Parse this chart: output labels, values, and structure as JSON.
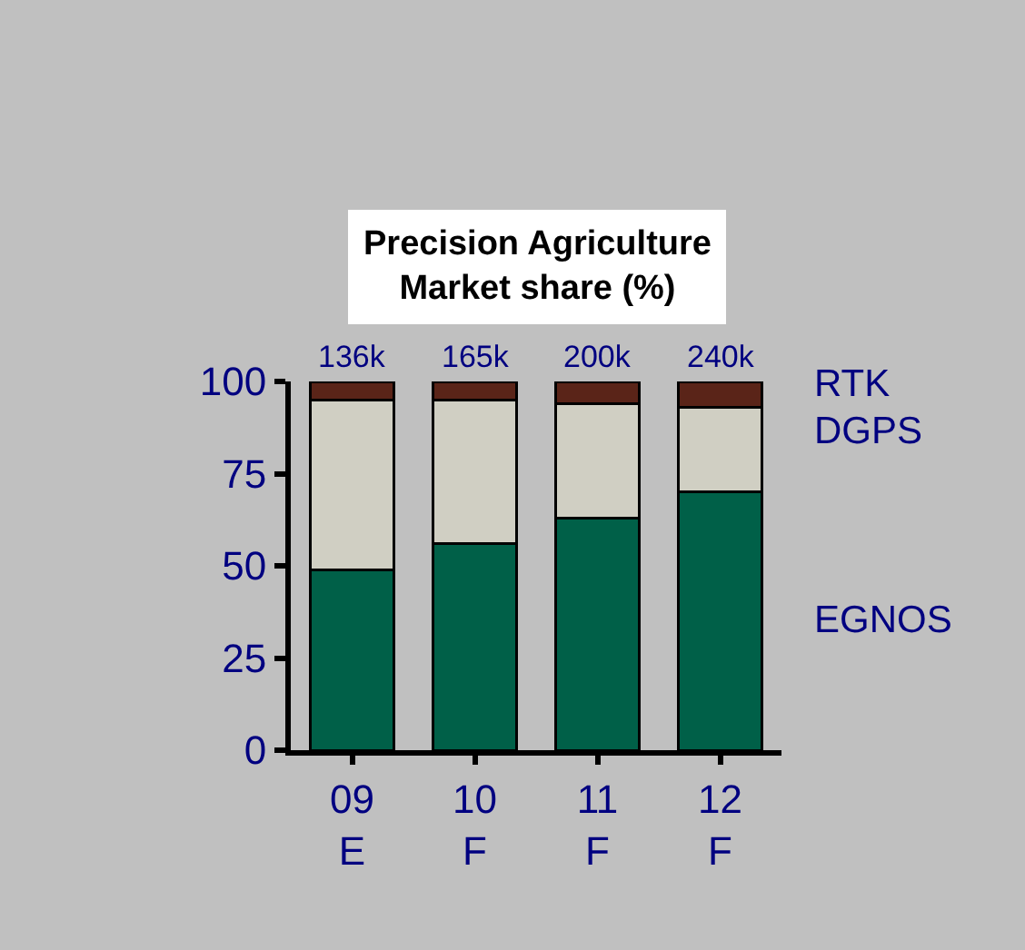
{
  "chart_data": {
    "type": "bar",
    "stacked": true,
    "title": "Precision Agriculture\nMarket share (%)",
    "categories": [
      "09\nE",
      "10\nF",
      "11\nF",
      "12\nF"
    ],
    "series": [
      {
        "name": "EGNOS",
        "color": "#006048",
        "values": [
          49,
          56,
          63,
          70
        ]
      },
      {
        "name": "DGPS",
        "color": "#d0cfc3",
        "values": [
          46,
          39,
          31,
          23
        ]
      },
      {
        "name": "RTK",
        "color": "#5a2418",
        "values": [
          5,
          5,
          6,
          7
        ]
      }
    ],
    "annotations": [
      "136k",
      "165k",
      "200k",
      "240k"
    ],
    "ylim": [
      0,
      100
    ],
    "yticks": [
      0,
      25,
      50,
      75,
      100
    ],
    "grid": false,
    "legend": false
  }
}
